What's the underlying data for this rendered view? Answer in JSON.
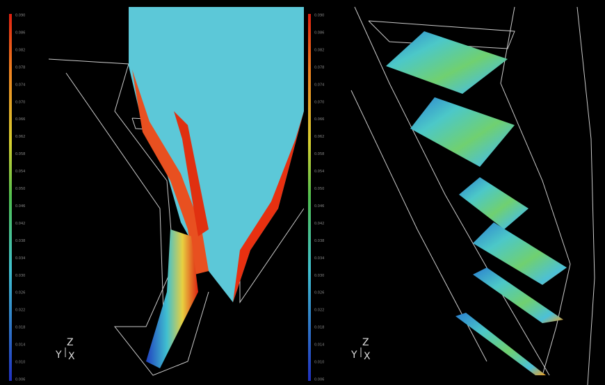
{
  "left_panel": {
    "colorbar_labels": [
      "0.090",
      "0.086",
      "0.082",
      "0.078",
      "0.074",
      "0.070",
      "0.066",
      "0.062",
      "0.058",
      "0.054",
      "0.050",
      "0.046",
      "0.042",
      "0.038",
      "0.034",
      "0.030",
      "0.026",
      "0.022",
      "0.018",
      "0.014",
      "0.010",
      "0.006"
    ],
    "axis_labels": {
      "z": "Z",
      "y": "Y",
      "x": "X"
    }
  },
  "right_panel": {
    "colorbar_labels": [
      "0.090",
      "0.086",
      "0.082",
      "0.078",
      "0.074",
      "0.070",
      "0.066",
      "0.062",
      "0.058",
      "0.054",
      "0.050",
      "0.046",
      "0.042",
      "0.038",
      "0.034",
      "0.030",
      "0.026",
      "0.022",
      "0.018",
      "0.014",
      "0.010",
      "0.006"
    ],
    "axis_labels": {
      "z": "Z",
      "y": "Y",
      "x": "X"
    }
  }
}
